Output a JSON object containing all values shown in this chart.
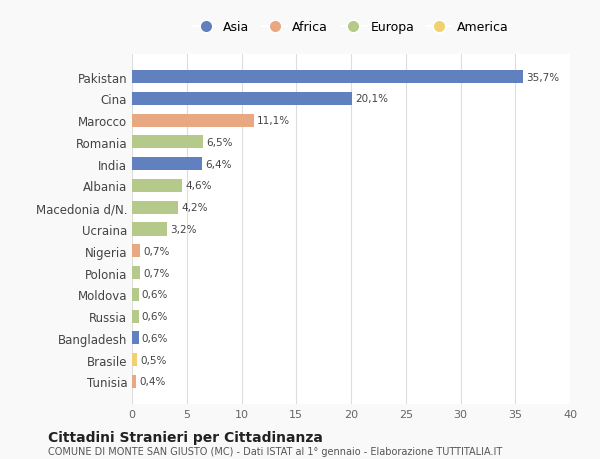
{
  "countries": [
    "Pakistan",
    "Cina",
    "Marocco",
    "Romania",
    "India",
    "Albania",
    "Macedonia d/N.",
    "Ucraina",
    "Nigeria",
    "Polonia",
    "Moldova",
    "Russia",
    "Bangladesh",
    "Brasile",
    "Tunisia"
  ],
  "values": [
    35.7,
    20.1,
    11.1,
    6.5,
    6.4,
    4.6,
    4.2,
    3.2,
    0.7,
    0.7,
    0.6,
    0.6,
    0.6,
    0.5,
    0.4
  ],
  "labels": [
    "35,7%",
    "20,1%",
    "11,1%",
    "6,5%",
    "6,4%",
    "4,6%",
    "4,2%",
    "3,2%",
    "0,7%",
    "0,7%",
    "0,6%",
    "0,6%",
    "0,6%",
    "0,5%",
    "0,4%"
  ],
  "continents": [
    "Asia",
    "Asia",
    "Africa",
    "Europa",
    "Asia",
    "Europa",
    "Europa",
    "Europa",
    "Africa",
    "Europa",
    "Europa",
    "Europa",
    "Asia",
    "America",
    "Africa"
  ],
  "continent_colors": {
    "Asia": "#6080c0",
    "Africa": "#e8a882",
    "Europa": "#b5c98a",
    "America": "#f0d070"
  },
  "legend_order": [
    "Asia",
    "Africa",
    "Europa",
    "America"
  ],
  "title": "Cittadini Stranieri per Cittadinanza",
  "subtitle": "COMUNE DI MONTE SAN GIUSTO (MC) - Dati ISTAT al 1° gennaio - Elaborazione TUTTITALIA.IT",
  "xlabel_vals": [
    0,
    5,
    10,
    15,
    20,
    25,
    30,
    35,
    40
  ],
  "xlim": [
    0,
    40
  ],
  "bg_color": "#f9f9f9",
  "bar_bg_color": "#ffffff",
  "grid_color": "#dddddd"
}
